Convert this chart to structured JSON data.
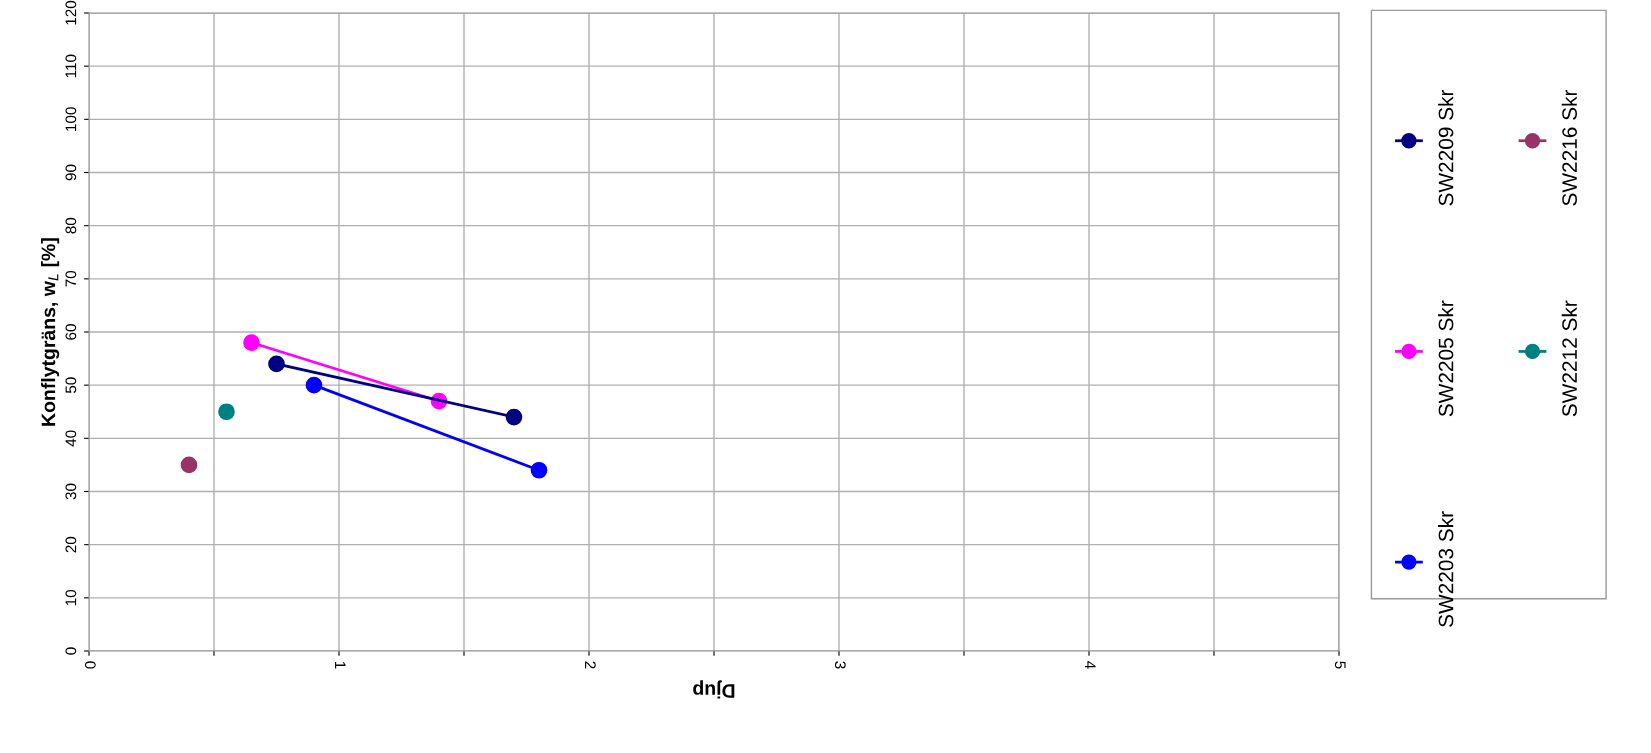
{
  "chart_data": {
    "type": "line",
    "xlabel": "Djup",
    "ylabel": "Konflytgräns, w$_{L}$ [%]",
    "xlim": [
      0,
      5
    ],
    "ylim": [
      0,
      120
    ],
    "xticks": [
      0,
      {
        "value": 0.5,
        "label": null
      },
      1,
      {
        "value": 1.5,
        "label": null
      },
      2,
      {
        "value": 2.5,
        "label": null
      },
      3,
      {
        "value": 3.5,
        "label": null
      },
      4,
      {
        "value": 4.5,
        "label": null
      },
      5
    ],
    "yticks": [
      0,
      10,
      20,
      30,
      40,
      50,
      60,
      70,
      80,
      90,
      100,
      110,
      120
    ],
    "grid": true,
    "legend": "right",
    "marker": "circle",
    "line_style": "solid",
    "series": [
      {
        "name": "SW2203 Skr",
        "color": "#0000ff",
        "x": [
          0.9,
          1.8
        ],
        "values": [
          50,
          34
        ]
      },
      {
        "name": "SW2205 Skr",
        "color": "#ff00ff",
        "x": [
          0.65,
          1.4
        ],
        "values": [
          58,
          47
        ]
      },
      {
        "name": "SW2209 Skr",
        "color": "#000080",
        "x": [
          0.75,
          1.7
        ],
        "values": [
          54,
          44
        ]
      },
      {
        "name": "SW2212 Skr",
        "color": "#008080",
        "x": [
          0.55
        ],
        "values": [
          45
        ]
      },
      {
        "name": "SW2216 Skr",
        "color": "#993366",
        "x": [
          0.4
        ],
        "values": [
          35
        ]
      }
    ]
  }
}
